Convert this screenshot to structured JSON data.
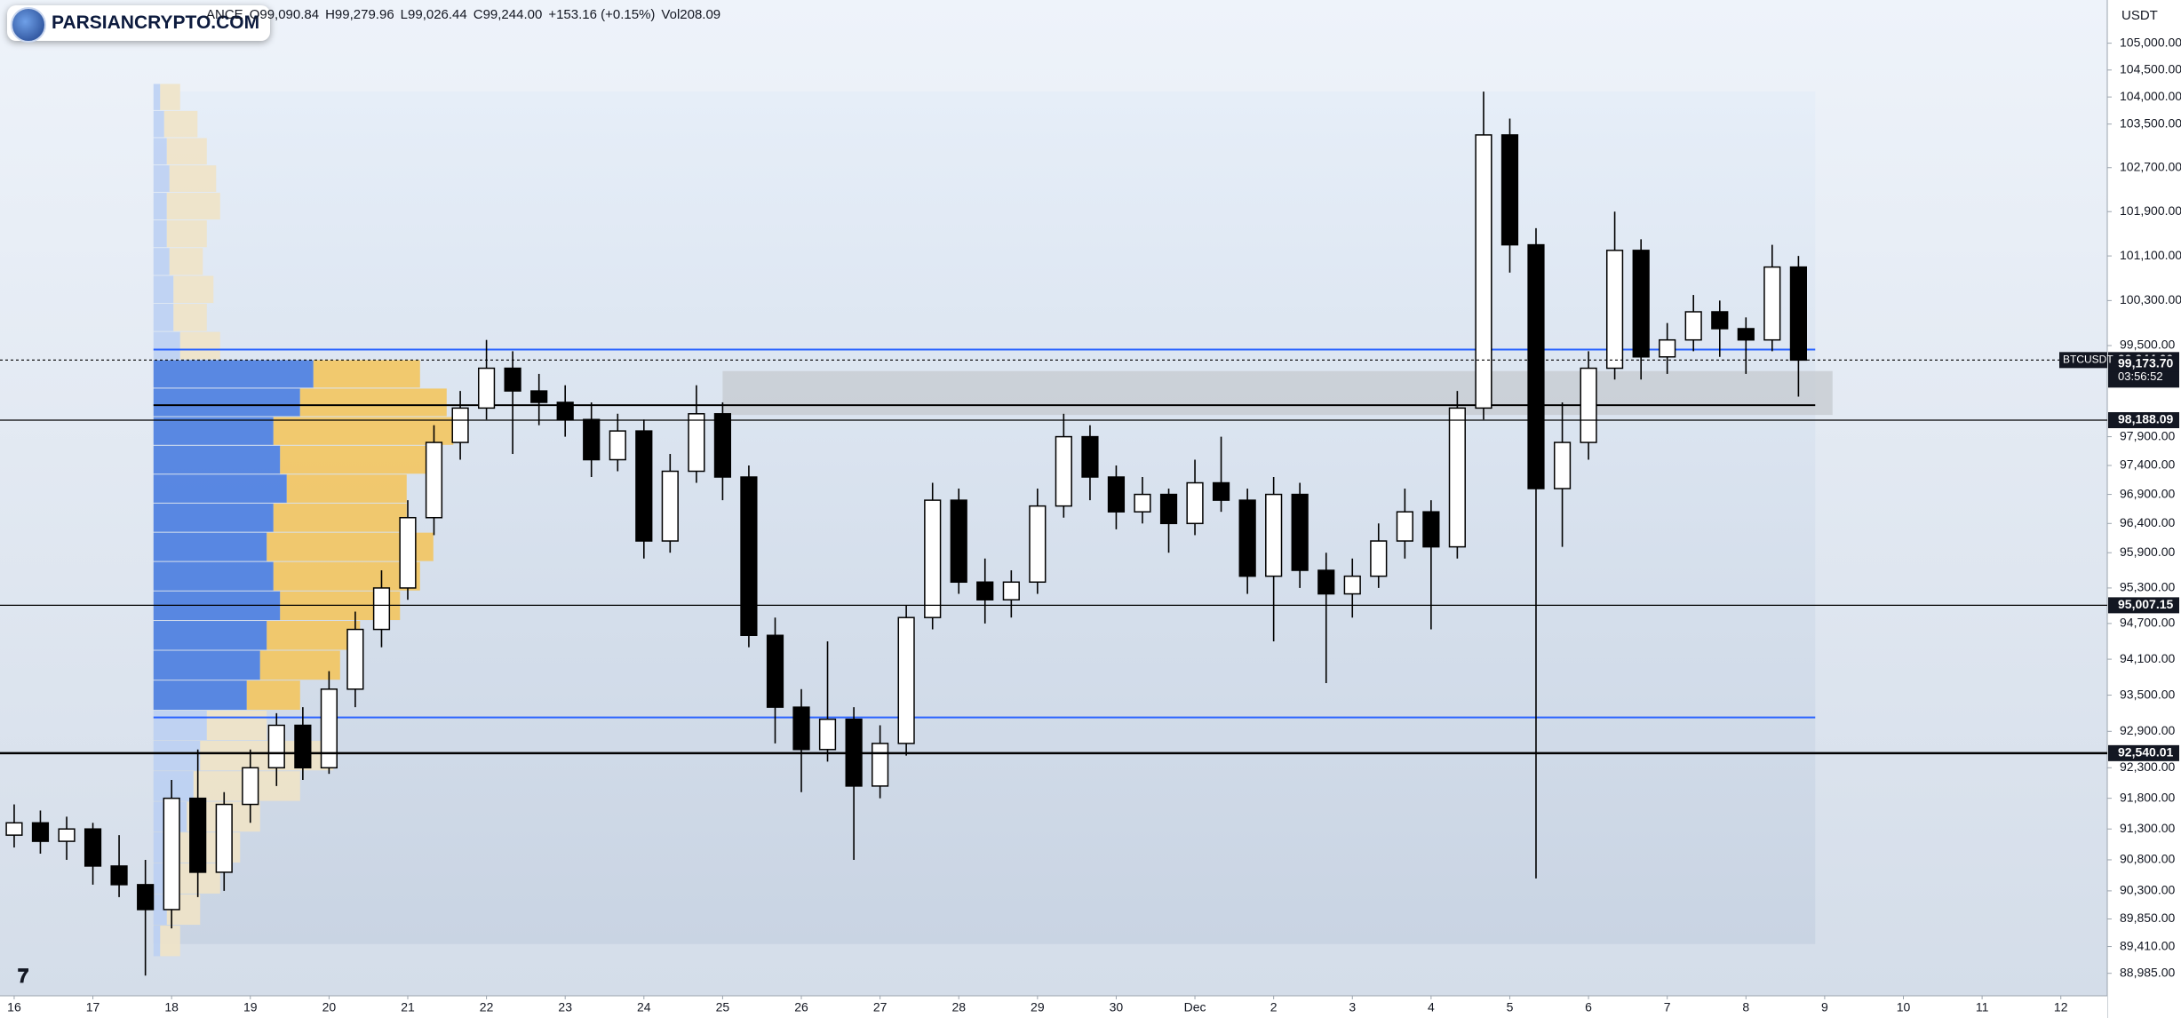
{
  "chart_data": {
    "type": "candlestick",
    "brand": "PARSIANCRYPTO.COM",
    "header": [
      "ANCE",
      "O99,090.84",
      "H99,279.96",
      "L99,026.44",
      "C99,244.00",
      "+153.16 (+0.15%)",
      "Vol208.09"
    ],
    "currency": "USDT",
    "symbol": "BTCUSDT",
    "countdown": "03:56:52",
    "up_color": "#ffffff",
    "down_color": "#000000",
    "border_color": "#000000",
    "log_scale": true,
    "grid": false,
    "xlim": [
      -0.18,
      26.59
    ],
    "ylim": [
      88630,
      105810
    ],
    "xticks": [
      {
        "value": 0,
        "label": "16"
      },
      {
        "value": 1,
        "label": "17"
      },
      {
        "value": 2,
        "label": "18"
      },
      {
        "value": 3,
        "label": "19"
      },
      {
        "value": 4,
        "label": "20"
      },
      {
        "value": 5,
        "label": "21"
      },
      {
        "value": 6,
        "label": "22"
      },
      {
        "value": 7,
        "label": "23"
      },
      {
        "value": 8,
        "label": "24"
      },
      {
        "value": 9,
        "label": "25"
      },
      {
        "value": 10,
        "label": "26"
      },
      {
        "value": 11,
        "label": "27"
      },
      {
        "value": 12,
        "label": "28"
      },
      {
        "value": 13,
        "label": "29"
      },
      {
        "value": 14,
        "label": "30"
      },
      {
        "value": 15,
        "label": "Dec"
      },
      {
        "value": 16,
        "label": "2"
      },
      {
        "value": 17,
        "label": "3"
      },
      {
        "value": 18,
        "label": "4"
      },
      {
        "value": 19,
        "label": "5"
      },
      {
        "value": 20,
        "label": "6"
      },
      {
        "value": 21,
        "label": "7"
      },
      {
        "value": 22,
        "label": "8"
      },
      {
        "value": 23,
        "label": "9"
      },
      {
        "value": 24,
        "label": "10"
      },
      {
        "value": 25,
        "label": "11"
      },
      {
        "value": 26,
        "label": "12"
      }
    ],
    "yticks": [
      {
        "value": 105000,
        "label": "105,000.00"
      },
      {
        "value": 104500,
        "label": "104,500.00"
      },
      {
        "value": 104000,
        "label": "104,000.00"
      },
      {
        "value": 103500,
        "label": "103,500.00"
      },
      {
        "value": 102700,
        "label": "102,700.00"
      },
      {
        "value": 101900,
        "label": "101,900.00"
      },
      {
        "value": 101100,
        "label": "101,100.00"
      },
      {
        "value": 100300,
        "label": "100,300.00"
      },
      {
        "value": 99500,
        "label": "99,500.00"
      },
      {
        "value": 97900,
        "label": "97,900.00"
      },
      {
        "value": 97400,
        "label": "97,400.00"
      },
      {
        "value": 96900,
        "label": "96,900.00"
      },
      {
        "value": 96400,
        "label": "96,400.00"
      },
      {
        "value": 95900,
        "label": "95,900.00"
      },
      {
        "value": 95300,
        "label": "95,300.00"
      },
      {
        "value": 94700,
        "label": "94,700.00"
      },
      {
        "value": 94100,
        "label": "94,100.00"
      },
      {
        "value": 93500,
        "label": "93,500.00"
      },
      {
        "value": 92900,
        "label": "92,900.00"
      },
      {
        "value": 92300,
        "label": "92,300.00"
      },
      {
        "value": 91800,
        "label": "91,800.00"
      },
      {
        "value": 91300,
        "label": "91,300.00"
      },
      {
        "value": 90800,
        "label": "90,800.00"
      },
      {
        "value": 90300,
        "label": "90,300.00"
      },
      {
        "value": 89850,
        "label": "89,850.00"
      },
      {
        "value": 89410,
        "label": "89,410.00"
      },
      {
        "value": 88985,
        "label": "88,985.00"
      }
    ],
    "x": [
      0,
      0.333,
      0.667,
      1,
      1.333,
      1.667,
      2,
      2.333,
      2.667,
      3,
      3.333,
      3.667,
      4,
      4.333,
      4.667,
      5,
      5.333,
      5.667,
      6,
      6.333,
      6.667,
      7,
      7.333,
      7.667,
      8,
      8.333,
      8.667,
      9,
      9.333,
      9.667,
      10,
      10.333,
      10.667,
      11,
      11.333,
      11.667,
      12,
      12.333,
      12.667,
      13,
      13.333,
      13.667,
      14,
      14.333,
      14.667,
      15,
      15.333,
      15.667,
      16,
      16.333,
      16.667,
      17,
      17.333,
      17.667,
      18,
      18.333,
      18.667,
      19,
      19.333,
      19.667,
      20,
      20.333,
      20.667,
      21,
      21.333,
      21.667,
      22,
      22.333,
      22.667
    ],
    "open": [
      91200,
      91400,
      91100,
      91300,
      90700,
      90400,
      90000,
      91800,
      90600,
      91700,
      92300,
      93000,
      92300,
      93600,
      94600,
      95300,
      96500,
      97800,
      98400,
      99100,
      98700,
      98500,
      98200,
      97500,
      98000,
      96100,
      97300,
      98300,
      97200,
      94500,
      93300,
      92600,
      93100,
      92000,
      92700,
      94800,
      96800,
      95400,
      95100,
      95400,
      96700,
      97900,
      97200,
      96600,
      96900,
      96400,
      97100,
      96800,
      95500,
      96900,
      95600,
      95200,
      95500,
      96100,
      96600,
      96000,
      98400,
      103300,
      101300,
      97000,
      97800,
      99100,
      101200,
      99300,
      99600,
      100100,
      99800,
      99600,
      100900
    ],
    "high": [
      91700,
      91600,
      91500,
      91400,
      91200,
      90800,
      92100,
      92600,
      91900,
      92600,
      93200,
      93300,
      93900,
      94900,
      95600,
      96800,
      98100,
      98700,
      99600,
      99400,
      99000,
      98800,
      98500,
      98300,
      98200,
      97600,
      98800,
      98500,
      97400,
      94800,
      93600,
      94400,
      93300,
      93000,
      95000,
      97100,
      97000,
      95800,
      95600,
      97000,
      98300,
      98100,
      97400,
      97200,
      97000,
      97500,
      97900,
      97000,
      97200,
      97100,
      95900,
      95800,
      96400,
      97000,
      96800,
      98700,
      104100,
      103600,
      101600,
      98500,
      99400,
      101900,
      101400,
      99900,
      100400,
      100300,
      100000,
      101300,
      101100
    ],
    "low": [
      91000,
      90900,
      90800,
      90400,
      90200,
      88950,
      89700,
      90200,
      90300,
      91400,
      92000,
      92100,
      92200,
      93300,
      94300,
      95100,
      96200,
      97500,
      98200,
      97600,
      98100,
      97900,
      97200,
      97300,
      95800,
      95900,
      97100,
      96800,
      94300,
      92700,
      91900,
      92400,
      90800,
      91800,
      92500,
      94600,
      95200,
      94700,
      94800,
      95200,
      96500,
      96800,
      96300,
      96400,
      95900,
      96200,
      96600,
      95200,
      94400,
      95300,
      93700,
      94800,
      95300,
      95800,
      94600,
      95800,
      98200,
      100800,
      90500,
      96000,
      97500,
      98900,
      98900,
      99000,
      99400,
      99300,
      99000,
      99400,
      98600
    ],
    "close": [
      91400,
      91100,
      91300,
      90700,
      90400,
      90000,
      91800,
      90600,
      91700,
      92300,
      93000,
      92300,
      93600,
      94600,
      95300,
      96500,
      97800,
      98400,
      99100,
      98700,
      98500,
      98200,
      97500,
      98000,
      96100,
      97300,
      98300,
      97200,
      94500,
      93300,
      92600,
      93100,
      92000,
      92700,
      94800,
      96800,
      95400,
      95100,
      95400,
      96700,
      97900,
      97200,
      96600,
      96900,
      96400,
      97100,
      96800,
      95500,
      96900,
      95600,
      95200,
      95500,
      96100,
      96600,
      96000,
      98400,
      103300,
      101300,
      97000,
      97800,
      99100,
      101200,
      99300,
      99600,
      100100,
      99800,
      99600,
      100900,
      99244
    ],
    "price_labels": [
      {
        "value": 99244,
        "label": "99,244.00"
      },
      {
        "value": 99173.7,
        "label": "99,173.70"
      },
      {
        "value": 98188.09,
        "label": "98,188.09"
      },
      {
        "value": 95007.15,
        "label": "95,007.15"
      },
      {
        "value": 92540.01,
        "label": "92,540.01"
      }
    ],
    "range_box": {
      "xlim": [
        1.77,
        22.88
      ],
      "ylim": [
        89450,
        104100
      ]
    },
    "zone": {
      "xlim": [
        9.0,
        23.1
      ],
      "ylim": [
        98280,
        99050
      ]
    },
    "value_area": {
      "levels": [
        99430,
        93130
      ],
      "color": "#2962ff"
    },
    "range_line": 98450,
    "volume_profile": {
      "prices": [
        89500,
        90000,
        90500,
        91000,
        91500,
        92000,
        92500,
        93000,
        93500,
        94000,
        94500,
        95000,
        95500,
        96000,
        96500,
        97000,
        97500,
        98000,
        98500,
        99000,
        99500,
        100000,
        100500,
        101000,
        101500,
        102000,
        102500,
        103000,
        103500,
        104000
      ],
      "down": [
        5,
        10,
        15,
        20,
        25,
        30,
        35,
        40,
        70,
        80,
        85,
        95,
        90,
        85,
        90,
        100,
        95,
        90,
        110,
        120,
        20,
        15,
        15,
        12,
        10,
        10,
        12,
        10,
        8,
        5
      ],
      "up": [
        15,
        25,
        35,
        45,
        55,
        80,
        100,
        45,
        40,
        60,
        70,
        90,
        110,
        125,
        100,
        90,
        120,
        135,
        110,
        80,
        30,
        25,
        30,
        25,
        30,
        40,
        35,
        30,
        25,
        15
      ],
      "down_color": "#4a7de0",
      "up_color": "#f3c55f",
      "down_pale": "#bdd0f3",
      "up_pale": "#efe3c6"
    }
  }
}
